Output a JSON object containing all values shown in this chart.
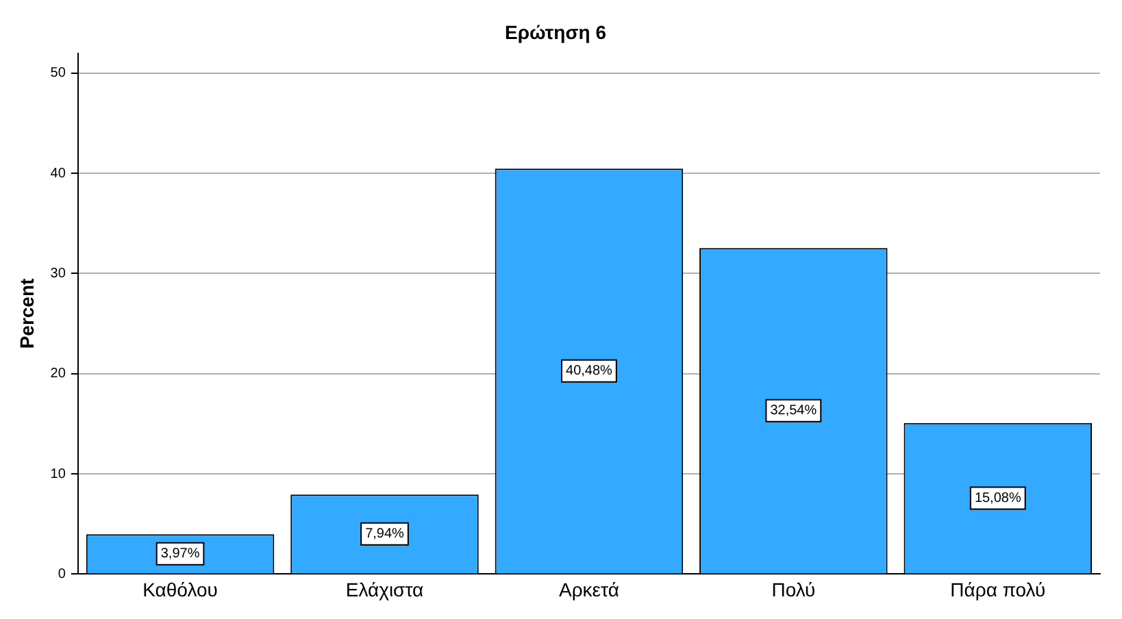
{
  "chart_data": {
    "type": "bar",
    "title": "Ερώτηση 6",
    "ylabel": "Percent",
    "categories": [
      "Καθόλου",
      "Ελάχιστα",
      "Αρκετά",
      "Πολύ",
      "Πάρα πολύ"
    ],
    "values": [
      3.97,
      7.94,
      40.48,
      32.54,
      15.08
    ],
    "value_labels": [
      "3,97%",
      "7,94%",
      "40,48%",
      "32,54%",
      "15,08%"
    ],
    "color": "#33aaff",
    "ylim": [
      0,
      52
    ],
    "yticks": [
      0,
      10,
      20,
      30,
      40,
      50
    ],
    "grid": "y",
    "legend": false
  }
}
